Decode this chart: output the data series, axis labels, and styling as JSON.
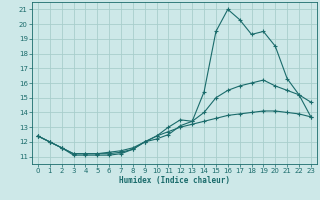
{
  "xlabel": "Humidex (Indice chaleur)",
  "xlim": [
    -0.5,
    23.5
  ],
  "ylim": [
    10.5,
    21.5
  ],
  "xticks": [
    0,
    1,
    2,
    3,
    4,
    5,
    6,
    7,
    8,
    9,
    10,
    11,
    12,
    13,
    14,
    15,
    16,
    17,
    18,
    19,
    20,
    21,
    22,
    23
  ],
  "yticks": [
    11,
    12,
    13,
    14,
    15,
    16,
    17,
    18,
    19,
    20,
    21
  ],
  "background_color": "#cde8e8",
  "grid_color": "#a8cecc",
  "line_color": "#1a6b6b",
  "line1_x": [
    0,
    1,
    2,
    3,
    4,
    5,
    6,
    7,
    8,
    9,
    10,
    11,
    12,
    13,
    14,
    15,
    16,
    17,
    18,
    19,
    20,
    21,
    22,
    23
  ],
  "line1_y": [
    12.4,
    12.0,
    11.6,
    11.1,
    11.1,
    11.1,
    11.1,
    11.2,
    11.5,
    12.0,
    12.2,
    12.5,
    13.1,
    13.4,
    15.4,
    19.5,
    21.0,
    20.3,
    19.3,
    19.5,
    18.5,
    16.3,
    15.2,
    14.7
  ],
  "line2_x": [
    0,
    1,
    2,
    3,
    4,
    5,
    6,
    7,
    8,
    9,
    10,
    11,
    12,
    13,
    14,
    15,
    16,
    17,
    18,
    19,
    20,
    21,
    22,
    23
  ],
  "line2_y": [
    12.4,
    12.0,
    11.6,
    11.2,
    11.2,
    11.2,
    11.2,
    11.3,
    11.5,
    12.0,
    12.4,
    13.0,
    13.5,
    13.4,
    14.0,
    15.0,
    15.5,
    15.8,
    16.0,
    16.2,
    15.8,
    15.5,
    15.2,
    13.7
  ],
  "line3_x": [
    0,
    1,
    2,
    3,
    4,
    5,
    6,
    7,
    8,
    9,
    10,
    11,
    12,
    13,
    14,
    15,
    16,
    17,
    18,
    19,
    20,
    21,
    22,
    23
  ],
  "line3_y": [
    12.4,
    12.0,
    11.6,
    11.2,
    11.2,
    11.2,
    11.3,
    11.4,
    11.6,
    12.0,
    12.4,
    12.7,
    13.0,
    13.2,
    13.4,
    13.6,
    13.8,
    13.9,
    14.0,
    14.1,
    14.1,
    14.0,
    13.9,
    13.7
  ]
}
